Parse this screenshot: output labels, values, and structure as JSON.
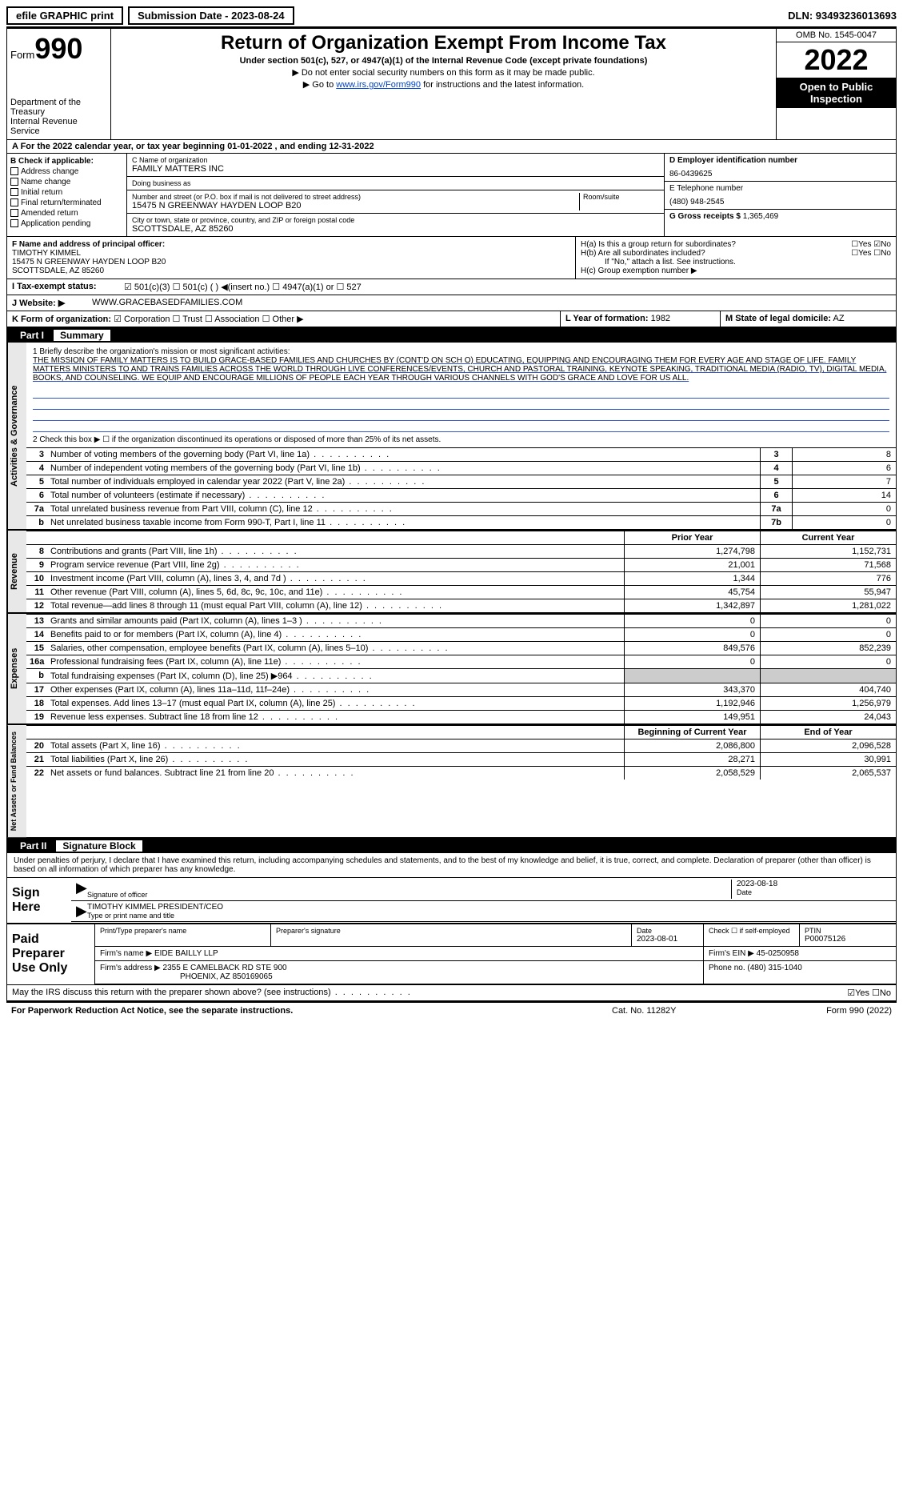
{
  "topbar": {
    "efile": "efile GRAPHIC print",
    "subdate_lbl": "Submission Date - 2023-08-24",
    "dln": "DLN: 93493236013693"
  },
  "header": {
    "form_word": "Form",
    "form_num": "990",
    "title": "Return of Organization Exempt From Income Tax",
    "sub1": "Under section 501(c), 527, or 4947(a)(1) of the Internal Revenue Code (except private foundations)",
    "sub2": "▶ Do not enter social security numbers on this form as it may be made public.",
    "sub3_pre": "▶ Go to ",
    "sub3_link": "www.irs.gov/Form990",
    "sub3_post": " for instructions and the latest information.",
    "dept": "Department of the Treasury",
    "irs": "Internal Revenue Service",
    "omb": "OMB No. 1545-0047",
    "year": "2022",
    "openpub": "Open to Public Inspection"
  },
  "rowA": "A  For the 2022 calendar year, or tax year beginning 01-01-2022   , and ending 12-31-2022",
  "colB": {
    "hdr": "B Check if applicable:",
    "items": [
      "Address change",
      "Name change",
      "Initial return",
      "Final return/terminated",
      "Amended return",
      "Application pending"
    ]
  },
  "colC": {
    "name_lbl": "C Name of organization",
    "name": "FAMILY MATTERS INC",
    "dba_lbl": "Doing business as",
    "dba": "",
    "addr_lbl": "Number and street (or P.O. box if mail is not delivered to street address)",
    "room_lbl": "Room/suite",
    "addr": "15475 N GREENWAY HAYDEN LOOP B20",
    "city_lbl": "City or town, state or province, country, and ZIP or foreign postal code",
    "city": "SCOTTSDALE, AZ  85260"
  },
  "colD": {
    "ein_lbl": "D Employer identification number",
    "ein": "86-0439625",
    "tel_lbl": "E Telephone number",
    "tel": "(480) 948-2545",
    "gross_lbl": "G Gross receipts $",
    "gross": "1,365,469"
  },
  "rowF": {
    "lbl": "F  Name and address of principal officer:",
    "name": "TIMOTHY KIMMEL",
    "addr1": "15475 N GREENWAY HAYDEN LOOP B20",
    "addr2": "SCOTTSDALE, AZ  85260"
  },
  "rowH": {
    "ha": "H(a)  Is this a group return for subordinates?",
    "ha_ans": "☐Yes  ☑No",
    "hb": "H(b)  Are all subordinates included?",
    "hb_ans": "☐Yes  ☐No",
    "hb_note": "If \"No,\" attach a list. See instructions.",
    "hc": "H(c)  Group exemption number ▶"
  },
  "rowI": {
    "lbl": "I    Tax-exempt status:",
    "opts": "☑ 501(c)(3)   ☐ 501(c) (  ) ◀(insert no.)   ☐ 4947(a)(1) or   ☐ 527"
  },
  "rowJ": {
    "lbl": "J   Website: ▶",
    "val": "WWW.GRACEBASEDFAMILIES.COM"
  },
  "rowK": {
    "lbl": "K Form of organization:",
    "opts": "☑ Corporation  ☐ Trust  ☐ Association  ☐ Other ▶",
    "L_lbl": "L Year of formation:",
    "L_val": "1982",
    "M_lbl": "M State of legal domicile:",
    "M_val": "AZ"
  },
  "part1": {
    "bar_pn": "Part I",
    "bar_pt": "Summary",
    "vtab_gov": "Activities & Governance",
    "vtab_rev": "Revenue",
    "vtab_exp": "Expenses",
    "vtab_net": "Net Assets or Fund Balances",
    "q1_lbl": "1   Briefly describe the organization's mission or most significant activities:",
    "q1_txt": "THE MISSION OF FAMILY MATTERS IS TO BUILD GRACE-BASED FAMILIES AND CHURCHES BY (CONT'D ON SCH O) EDUCATING, EQUIPPING AND ENCOURAGING THEM FOR EVERY AGE AND STAGE OF LIFE. FAMILY MATTERS MINISTERS TO AND TRAINS FAMILIES ACROSS THE WORLD THROUGH LIVE CONFERENCES/EVENTS, CHURCH AND PASTORAL TRAINING, KEYNOTE SPEAKING, TRADITIONAL MEDIA (RADIO, TV), DIGITAL MEDIA, BOOKS, AND COUNSELING. WE EQUIP AND ENCOURAGE MILLIONS OF PEOPLE EACH YEAR THROUGH VARIOUS CHANNELS WITH GOD'S GRACE AND LOVE FOR US ALL.",
    "q2": "2   Check this box ▶ ☐  if the organization discontinued its operations or disposed of more than 25% of its net assets.",
    "rows_gov": [
      {
        "n": "3",
        "t": "Number of voting members of the governing body (Part VI, line 1a)",
        "box": "3",
        "v": "8"
      },
      {
        "n": "4",
        "t": "Number of independent voting members of the governing body (Part VI, line 1b)",
        "box": "4",
        "v": "6"
      },
      {
        "n": "5",
        "t": "Total number of individuals employed in calendar year 2022 (Part V, line 2a)",
        "box": "5",
        "v": "7"
      },
      {
        "n": "6",
        "t": "Total number of volunteers (estimate if necessary)",
        "box": "6",
        "v": "14"
      },
      {
        "n": "7a",
        "t": "Total unrelated business revenue from Part VIII, column (C), line 12",
        "box": "7a",
        "v": "0"
      },
      {
        "n": "b",
        "t": "Net unrelated business taxable income from Form 990-T, Part I, line 11",
        "box": "7b",
        "v": "0"
      }
    ],
    "hdr_prior": "Prior Year",
    "hdr_curr": "Current Year",
    "rows_rev": [
      {
        "n": "8",
        "t": "Contributions and grants (Part VIII, line 1h)",
        "p": "1,274,798",
        "c": "1,152,731"
      },
      {
        "n": "9",
        "t": "Program service revenue (Part VIII, line 2g)",
        "p": "21,001",
        "c": "71,568"
      },
      {
        "n": "10",
        "t": "Investment income (Part VIII, column (A), lines 3, 4, and 7d )",
        "p": "1,344",
        "c": "776"
      },
      {
        "n": "11",
        "t": "Other revenue (Part VIII, column (A), lines 5, 6d, 8c, 9c, 10c, and 11e)",
        "p": "45,754",
        "c": "55,947"
      },
      {
        "n": "12",
        "t": "Total revenue—add lines 8 through 11 (must equal Part VIII, column (A), line 12)",
        "p": "1,342,897",
        "c": "1,281,022"
      }
    ],
    "rows_exp": [
      {
        "n": "13",
        "t": "Grants and similar amounts paid (Part IX, column (A), lines 1–3 )",
        "p": "0",
        "c": "0"
      },
      {
        "n": "14",
        "t": "Benefits paid to or for members (Part IX, column (A), line 4)",
        "p": "0",
        "c": "0"
      },
      {
        "n": "15",
        "t": "Salaries, other compensation, employee benefits (Part IX, column (A), lines 5–10)",
        "p": "849,576",
        "c": "852,239"
      },
      {
        "n": "16a",
        "t": "Professional fundraising fees (Part IX, column (A), line 11e)",
        "p": "0",
        "c": "0"
      },
      {
        "n": "b",
        "t": "Total fundraising expenses (Part IX, column (D), line 25) ▶964",
        "p": "",
        "c": "",
        "shaded": true
      },
      {
        "n": "17",
        "t": "Other expenses (Part IX, column (A), lines 11a–11d, 11f–24e)",
        "p": "343,370",
        "c": "404,740"
      },
      {
        "n": "18",
        "t": "Total expenses. Add lines 13–17 (must equal Part IX, column (A), line 25)",
        "p": "1,192,946",
        "c": "1,256,979"
      },
      {
        "n": "19",
        "t": "Revenue less expenses. Subtract line 18 from line 12",
        "p": "149,951",
        "c": "24,043"
      }
    ],
    "hdr_beg": "Beginning of Current Year",
    "hdr_end": "End of Year",
    "rows_net": [
      {
        "n": "20",
        "t": "Total assets (Part X, line 16)",
        "p": "2,086,800",
        "c": "2,096,528"
      },
      {
        "n": "21",
        "t": "Total liabilities (Part X, line 26)",
        "p": "28,271",
        "c": "30,991"
      },
      {
        "n": "22",
        "t": "Net assets or fund balances. Subtract line 21 from line 20",
        "p": "2,058,529",
        "c": "2,065,537"
      }
    ]
  },
  "part2": {
    "bar_pn": "Part II",
    "bar_pt": "Signature Block",
    "perjury": "Under penalties of perjury, I declare that I have examined this return, including accompanying schedules and statements, and to the best of my knowledge and belief, it is true, correct, and complete. Declaration of preparer (other than officer) is based on all information of which preparer has any knowledge.",
    "sign_lbl": "Sign Here",
    "sig_officer_lbl": "Signature of officer",
    "sig_date_lbl": "Date",
    "sig_date": "2023-08-18",
    "sig_name": "TIMOTHY KIMMEL  PRESIDENT/CEO",
    "sig_name_lbl": "Type or print name and title",
    "prep_lbl": "Paid Preparer Use Only",
    "prep_name_lbl": "Print/Type preparer's name",
    "prep_sig_lbl": "Preparer's signature",
    "prep_date_lbl": "Date",
    "prep_date": "2023-08-01",
    "prep_check_lbl": "Check ☐ if self-employed",
    "prep_ptin_lbl": "PTIN",
    "prep_ptin": "P00075126",
    "firm_name_lbl": "Firm's name    ▶",
    "firm_name": "EIDE BAILLY LLP",
    "firm_ein_lbl": "Firm's EIN ▶",
    "firm_ein": "45-0250958",
    "firm_addr_lbl": "Firm's address ▶",
    "firm_addr1": "2355 E CAMELBACK RD STE 900",
    "firm_addr2": "PHOENIX, AZ  850169065",
    "firm_phone_lbl": "Phone no.",
    "firm_phone": "(480) 315-1040",
    "discuss": "May the IRS discuss this return with the preparer shown above? (see instructions)",
    "discuss_ans": "☑Yes  ☐No"
  },
  "footer": {
    "l": "For Paperwork Reduction Act Notice, see the separate instructions.",
    "m": "Cat. No. 11282Y",
    "r": "Form 990 (2022)"
  }
}
